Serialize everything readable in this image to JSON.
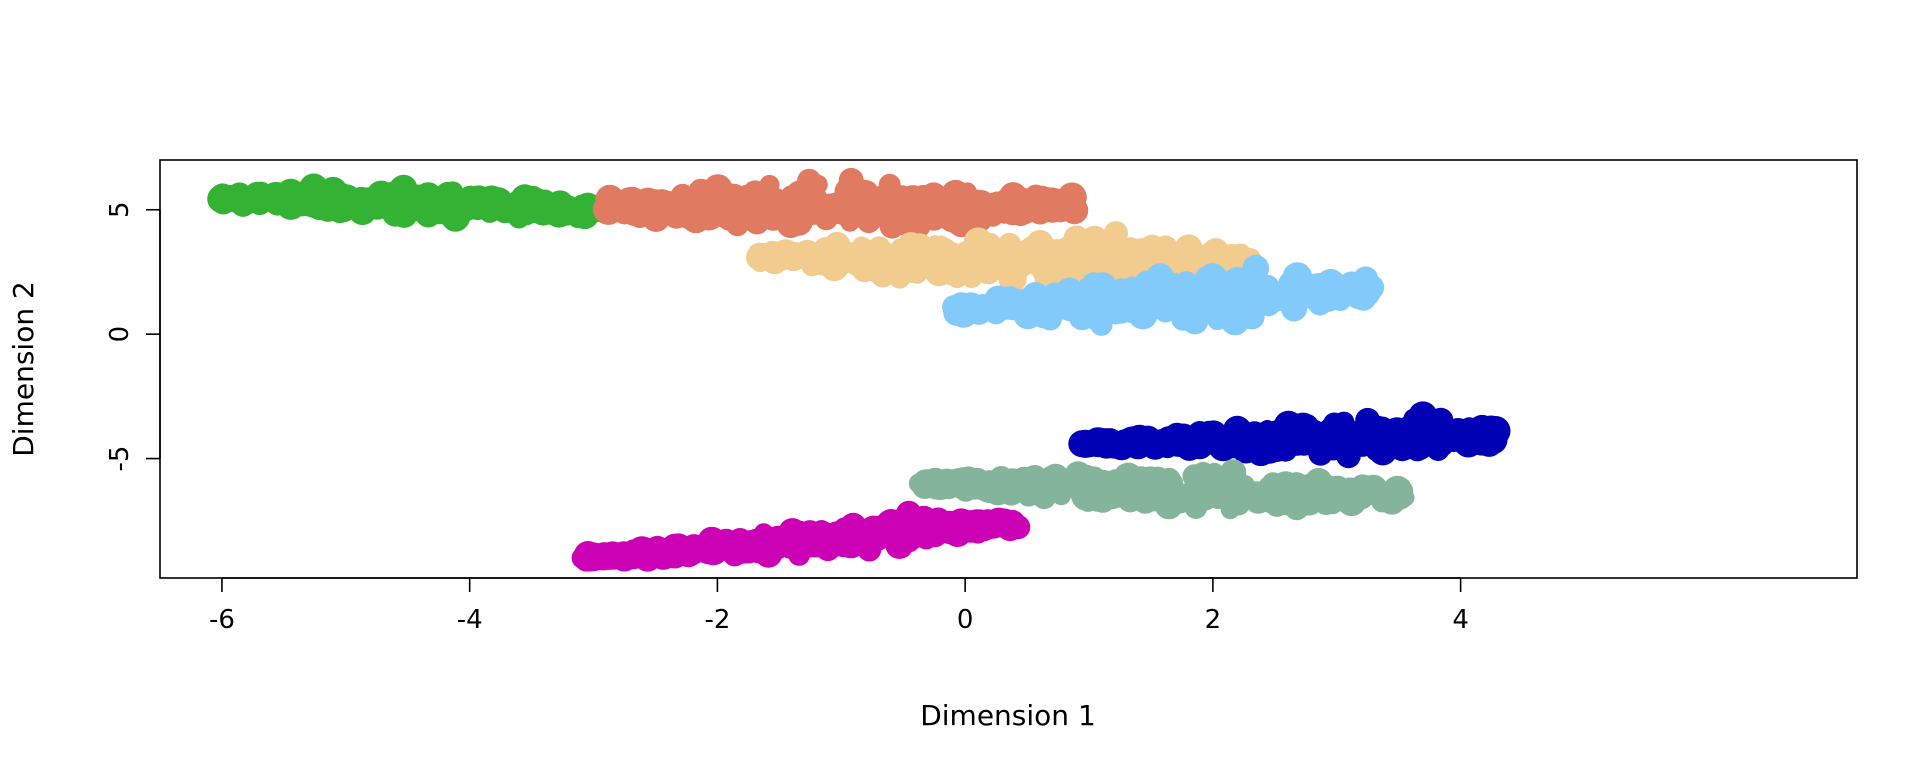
{
  "chart_data": {
    "type": "scatter",
    "title": "",
    "xlabel": "Dimension 1",
    "ylabel": "Dimension 2",
    "xlim": [
      -6.5,
      7.2
    ],
    "ylim": [
      -9.8,
      7.0
    ],
    "xticks": [
      "-6",
      "-4",
      "-2",
      "0",
      "2",
      "4"
    ],
    "yticks": [
      "-5",
      "0",
      "5"
    ],
    "grid": false,
    "legend": "none",
    "series": [
      {
        "color": "#33B233",
        "start": [
          -6.0,
          5.5
        ],
        "end": [
          -2.85,
          5.0
        ],
        "width": [
          1.6,
          1.9
        ],
        "count": 260
      },
      {
        "color": "#E07A60",
        "start": [
          -2.9,
          5.1
        ],
        "end": [
          0.9,
          5.2
        ],
        "width": [
          2.6,
          3.2
        ],
        "count": 300
      },
      {
        "color": "#F2CB8E",
        "start": [
          -1.7,
          3.1
        ],
        "end": [
          2.3,
          2.9
        ],
        "width": [
          1.6,
          4.2
        ],
        "count": 280
      },
      {
        "color": "#82CAFA",
        "start": [
          -0.1,
          1.0
        ],
        "end": [
          3.3,
          1.8
        ],
        "width": [
          1.8,
          3.8
        ],
        "count": 280
      },
      {
        "color": "#0000B4",
        "start": [
          0.95,
          -4.4
        ],
        "end": [
          4.3,
          -4.05
        ],
        "width": [
          0.4,
          4.0
        ],
        "count": 300
      },
      {
        "color": "#84B49A",
        "start": [
          -0.4,
          -6.0
        ],
        "end": [
          3.55,
          -6.5
        ],
        "width": [
          1.2,
          3.4
        ],
        "count": 280
      },
      {
        "color": "#CC00B4",
        "start": [
          -3.1,
          -9.0
        ],
        "end": [
          0.45,
          -7.6
        ],
        "width": [
          0.5,
          2.8
        ],
        "count": 260
      }
    ]
  }
}
